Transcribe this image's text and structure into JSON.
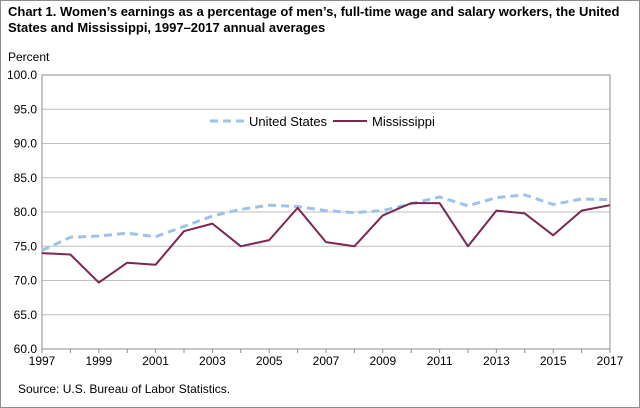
{
  "chart_data": {
    "type": "line",
    "title": "Chart 1. Women’s earnings as a percentage of men’s, full-time wage and salary workers, the United States and Mississippi,  1997–2017  annual averages",
    "ylabel": "Percent",
    "xlabel": "",
    "ylim": [
      60.0,
      100.0
    ],
    "yticks": [
      "60.0",
      "65.0",
      "70.0",
      "75.0",
      "80.0",
      "85.0",
      "90.0",
      "95.0",
      "100.0"
    ],
    "x": [
      1997,
      1998,
      1999,
      2000,
      2001,
      2002,
      2003,
      2004,
      2005,
      2006,
      2007,
      2008,
      2009,
      2010,
      2011,
      2012,
      2013,
      2014,
      2015,
      2016,
      2017
    ],
    "xtick_labels": [
      "1997",
      "1999",
      "2001",
      "2003",
      "2005",
      "2007",
      "2009",
      "2011",
      "2013",
      "2015",
      "2017"
    ],
    "grid": true,
    "legend_position": "top-center",
    "series": [
      {
        "name": "United States",
        "style": "dashed",
        "color": "#9dc3e6",
        "values": [
          74.4,
          76.3,
          76.5,
          76.9,
          76.4,
          77.9,
          79.4,
          80.4,
          81.0,
          80.8,
          80.2,
          79.9,
          80.2,
          81.2,
          82.2,
          80.9,
          82.1,
          82.5,
          81.1,
          81.9,
          81.8
        ]
      },
      {
        "name": "Mississippi",
        "style": "solid",
        "color": "#7b2752",
        "values": [
          74.0,
          73.8,
          69.7,
          72.6,
          72.3,
          77.2,
          78.3,
          75.0,
          75.9,
          80.6,
          75.6,
          75.0,
          79.5,
          81.3,
          81.3,
          75.0,
          80.2,
          79.8,
          76.6,
          80.2,
          81.0
        ]
      }
    ]
  },
  "source": "Source:  U.S. Bureau of Labor Statistics."
}
